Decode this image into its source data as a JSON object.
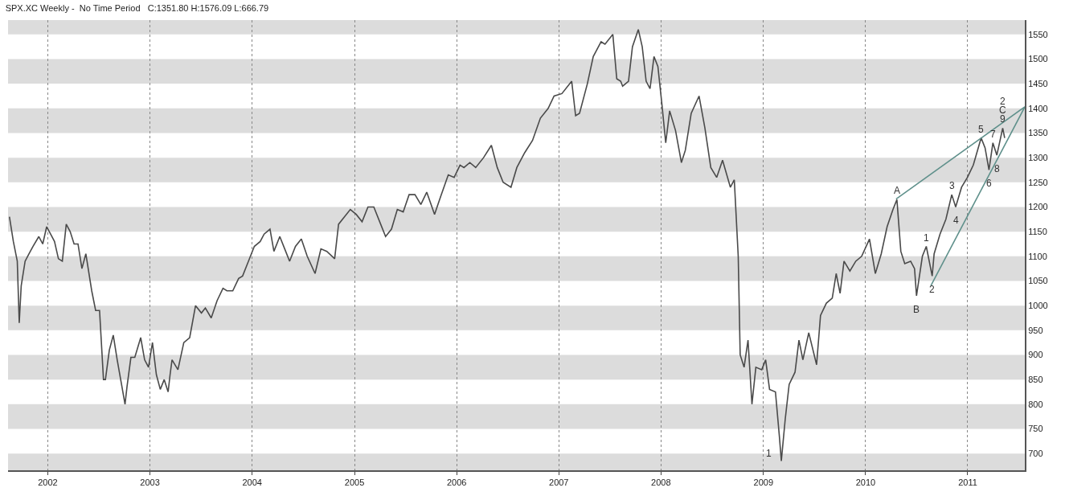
{
  "chart_data": {
    "type": "line",
    "title": "SPX.XC Weekly -  No Time Period   C:1351.80 H:1576.09 L:666.79",
    "x": [
      "2001-08-17",
      "2001-08-31",
      "2001-09-14",
      "2001-09-21",
      "2001-09-28",
      "2001-10-12",
      "2001-10-26",
      "2001-11-09",
      "2001-11-30",
      "2001-12-14",
      "2001-12-28",
      "2002-01-11",
      "2002-01-25",
      "2002-02-08",
      "2002-02-22",
      "2002-03-08",
      "2002-03-22",
      "2002-04-05",
      "2002-04-19",
      "2002-05-03",
      "2002-05-17",
      "2002-06-07",
      "2002-06-21",
      "2002-07-05",
      "2002-07-19",
      "2002-07-26",
      "2002-08-09",
      "2002-08-23",
      "2002-09-06",
      "2002-09-20",
      "2002-10-04",
      "2002-10-11",
      "2002-10-25",
      "2002-11-08",
      "2002-11-29",
      "2002-12-13",
      "2002-12-27",
      "2003-01-10",
      "2003-01-24",
      "2003-02-07",
      "2003-02-21",
      "2003-03-07",
      "2003-03-14",
      "2003-03-21",
      "2003-04-11",
      "2003-05-02",
      "2003-05-23",
      "2003-06-13",
      "2003-07-04",
      "2003-07-18",
      "2003-08-08",
      "2003-08-29",
      "2003-09-19",
      "2003-10-03",
      "2003-10-24",
      "2003-11-14",
      "2003-11-28",
      "2003-12-19",
      "2004-01-09",
      "2004-01-30",
      "2004-02-13",
      "2004-03-05",
      "2004-03-19",
      "2004-04-09",
      "2004-04-30",
      "2004-05-14",
      "2004-06-04",
      "2004-06-25",
      "2004-07-16",
      "2004-08-13",
      "2004-09-03",
      "2004-09-24",
      "2004-10-22",
      "2004-11-05",
      "2004-11-26",
      "2004-12-17",
      "2005-01-07",
      "2005-01-28",
      "2005-02-18",
      "2005-03-11",
      "2005-04-01",
      "2005-04-22",
      "2005-05-13",
      "2005-06-03",
      "2005-06-24",
      "2005-07-15",
      "2005-08-05",
      "2005-08-26",
      "2005-09-16",
      "2005-10-14",
      "2005-11-04",
      "2005-12-02",
      "2005-12-23",
      "2006-01-13",
      "2006-01-27",
      "2006-02-17",
      "2006-03-10",
      "2006-04-07",
      "2006-05-05",
      "2006-05-26",
      "2006-06-16",
      "2006-07-14",
      "2006-08-04",
      "2006-09-01",
      "2006-09-29",
      "2006-10-27",
      "2006-11-24",
      "2006-12-15",
      "2007-01-12",
      "2007-02-16",
      "2007-03-02",
      "2007-03-16",
      "2007-04-13",
      "2007-05-04",
      "2007-06-01",
      "2007-06-15",
      "2007-07-13",
      "2007-07-27",
      "2007-08-10",
      "2007-08-17",
      "2007-09-07",
      "2007-09-21",
      "2007-10-12",
      "2007-10-26",
      "2007-11-09",
      "2007-11-23",
      "2007-12-07",
      "2007-12-21",
      "2008-01-04",
      "2008-01-18",
      "2008-02-01",
      "2008-02-22",
      "2008-03-14",
      "2008-03-28",
      "2008-04-18",
      "2008-05-16",
      "2008-06-06",
      "2008-06-27",
      "2008-07-18",
      "2008-08-08",
      "2008-09-05",
      "2008-09-19",
      "2008-10-03",
      "2008-10-10",
      "2008-10-24",
      "2008-11-07",
      "2008-11-21",
      "2008-12-05",
      "2008-12-26",
      "2009-01-09",
      "2009-01-23",
      "2009-02-13",
      "2009-02-27",
      "2009-03-06",
      "2009-03-20",
      "2009-04-03",
      "2009-04-24",
      "2009-05-08",
      "2009-05-22",
      "2009-06-12",
      "2009-07-10",
      "2009-07-24",
      "2009-08-14",
      "2009-09-04",
      "2009-09-18",
      "2009-10-02",
      "2009-10-16",
      "2009-11-06",
      "2009-11-27",
      "2009-12-18",
      "2010-01-15",
      "2010-02-05",
      "2010-02-26",
      "2010-03-19",
      "2010-04-09",
      "2010-04-23",
      "2010-05-07",
      "2010-05-21",
      "2010-06-11",
      "2010-06-25",
      "2010-07-02",
      "2010-07-23",
      "2010-08-06",
      "2010-08-27",
      "2010-09-03",
      "2010-09-24",
      "2010-10-15",
      "2010-11-05",
      "2010-11-19",
      "2010-12-10",
      "2010-12-31",
      "2011-01-21",
      "2011-02-18",
      "2011-03-04",
      "2011-03-18",
      "2011-04-01",
      "2011-04-15",
      "2011-05-06",
      "2011-05-13"
    ],
    "series": [
      {
        "color": "#4a4a4a",
        "values": [
          1180,
          1130,
          1090,
          965,
          1040,
          1090,
          1105,
          1120,
          1140,
          1125,
          1160,
          1145,
          1130,
          1095,
          1090,
          1165,
          1150,
          1125,
          1125,
          1075,
          1105,
          1030,
          990,
          990,
          850,
          850,
          910,
          940,
          890,
          845,
          800,
          835,
          895,
          895,
          935,
          890,
          875,
          925,
          860,
          830,
          850,
          825,
          860,
          890,
          870,
          925,
          935,
          1000,
          985,
          995,
          975,
          1010,
          1035,
          1030,
          1030,
          1055,
          1060,
          1090,
          1120,
          1130,
          1145,
          1155,
          1110,
          1140,
          1110,
          1090,
          1120,
          1135,
          1100,
          1065,
          1115,
          1110,
          1095,
          1165,
          1180,
          1195,
          1185,
          1170,
          1200,
          1200,
          1170,
          1140,
          1155,
          1195,
          1190,
          1225,
          1225,
          1205,
          1230,
          1185,
          1220,
          1265,
          1260,
          1285,
          1280,
          1290,
          1280,
          1300,
          1325,
          1280,
          1250,
          1240,
          1280,
          1310,
          1335,
          1380,
          1400,
          1425,
          1430,
          1455,
          1385,
          1390,
          1450,
          1505,
          1535,
          1530,
          1550,
          1460,
          1455,
          1445,
          1455,
          1525,
          1560,
          1525,
          1455,
          1440,
          1505,
          1485,
          1410,
          1330,
          1395,
          1355,
          1290,
          1315,
          1390,
          1425,
          1360,
          1280,
          1260,
          1295,
          1240,
          1255,
          1100,
          900,
          875,
          930,
          800,
          875,
          870,
          890,
          830,
          825,
          735,
          685,
          770,
          840,
          865,
          930,
          890,
          945,
          880,
          980,
          1005,
          1015,
          1065,
          1025,
          1090,
          1070,
          1090,
          1100,
          1135,
          1065,
          1105,
          1160,
          1195,
          1215,
          1110,
          1085,
          1090,
          1075,
          1020,
          1100,
          1120,
          1060,
          1105,
          1145,
          1175,
          1225,
          1200,
          1240,
          1260,
          1285,
          1340,
          1320,
          1275,
          1330,
          1305,
          1360,
          1340
        ]
      },
      {
        "type": "line",
        "color": "#5f908b",
        "x": [
          "2010-04-20",
          "2011-07-24"
        ],
        "values": [
          1216,
          1403
        ]
      },
      {
        "type": "line",
        "color": "#5f908b",
        "x": [
          "2010-08-22",
          "2011-07-24"
        ],
        "values": [
          1040,
          1403
        ]
      }
    ],
    "xlim": [
      "2001-08-12",
      "2011-07-24"
    ],
    "xticks": [
      {
        "value": "2002-01-01",
        "label": "2002"
      },
      {
        "value": "2003-01-01",
        "label": "2003"
      },
      {
        "value": "2004-01-01",
        "label": "2004"
      },
      {
        "value": "2005-01-01",
        "label": "2005"
      },
      {
        "value": "2006-01-01",
        "label": "2006"
      },
      {
        "value": "2007-01-01",
        "label": "2007"
      },
      {
        "value": "2008-01-01",
        "label": "2008"
      },
      {
        "value": "2009-01-01",
        "label": "2009"
      },
      {
        "value": "2010-01-01",
        "label": "2010"
      },
      {
        "value": "2011-01-01",
        "label": "2011"
      }
    ],
    "ylim": [
      666,
      1579
    ],
    "yticks": [
      700,
      750,
      800,
      850,
      900,
      950,
      1000,
      1050,
      1100,
      1150,
      1200,
      1250,
      1300,
      1350,
      1400,
      1450,
      1500,
      1550
    ],
    "grid": true,
    "annotations": [
      {
        "text": "1",
        "x": "2009-03-06",
        "y": 685
      },
      {
        "text": "A",
        "x": "2010-04-23",
        "y": 1215
      },
      {
        "text": "B",
        "x": "2010-07-02",
        "y": 1020
      },
      {
        "text": "1",
        "x": "2010-08-06",
        "y": 1120
      },
      {
        "text": "2",
        "x": "2010-08-27",
        "y": 1060
      },
      {
        "text": "3",
        "x": "2010-11-05",
        "y": 1225
      },
      {
        "text": "4",
        "x": "2010-11-19",
        "y": 1200
      },
      {
        "text": "5",
        "x": "2011-02-18",
        "y": 1340
      },
      {
        "text": "6",
        "x": "2011-03-18",
        "y": 1275
      },
      {
        "text": "7",
        "x": "2011-04-01",
        "y": 1330
      },
      {
        "text": "8",
        "x": "2011-04-15",
        "y": 1305
      },
      {
        "text": "9",
        "x": "2011-05-06",
        "y": 1360
      },
      {
        "text": "C",
        "x": "2011-05-06",
        "y": 1360
      },
      {
        "text": "2",
        "x": "2011-05-06",
        "y": 1360
      }
    ]
  }
}
